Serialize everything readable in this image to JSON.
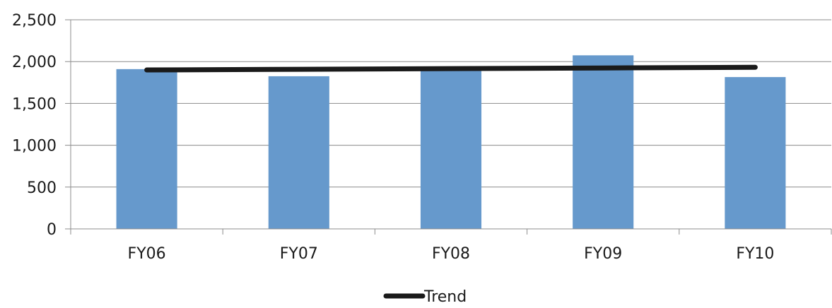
{
  "chart_data": {
    "type": "bar",
    "categories": [
      "FY06",
      "FY07",
      "FY08",
      "FY09",
      "FY10"
    ],
    "series": [
      {
        "type": "bar",
        "values": [
          1910,
          1825,
          1925,
          2075,
          1815
        ],
        "color": "#6699CC"
      },
      {
        "name": "Trend",
        "type": "line",
        "values": [
          1900,
          1908,
          1916,
          1924,
          1932
        ],
        "color": "#1a1a1a"
      }
    ],
    "yticks": [
      "0",
      "500",
      "1,000",
      "1,500",
      "2,000",
      "2,500"
    ],
    "ylim": [
      0,
      2500
    ],
    "grid": true,
    "legend": {
      "position": "bottom-center",
      "entries": [
        "Trend"
      ]
    },
    "title": "",
    "xlabel": "",
    "ylabel": ""
  }
}
